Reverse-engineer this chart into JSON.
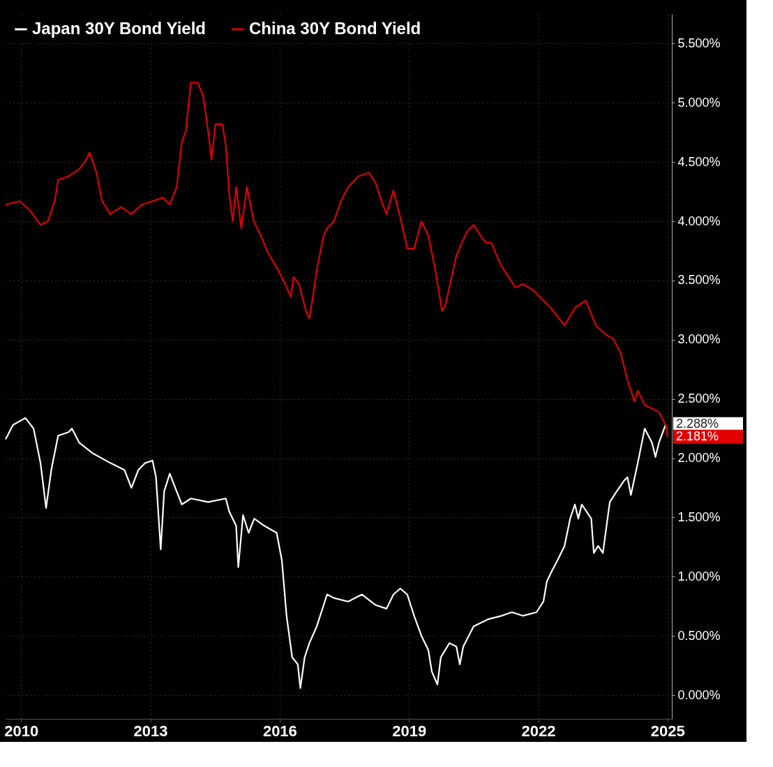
{
  "chart_data": {
    "type": "line",
    "xlim": [
      2009.64,
      2025.1
    ],
    "xticks": [
      2010,
      2013,
      2016,
      2019,
      2022,
      2025
    ],
    "ylim": [
      -0.2,
      5.75
    ],
    "yticks": [
      {
        "value": 0,
        "label": "0.000%"
      },
      {
        "value": 0.5,
        "label": "0.500%"
      },
      {
        "value": 1,
        "label": "1.000%"
      },
      {
        "value": 1.5,
        "label": "1.500%"
      },
      {
        "value": 2,
        "label": "2.000%"
      },
      {
        "value": 2.5,
        "label": "2.500%"
      },
      {
        "value": 3,
        "label": "3.000%"
      },
      {
        "value": 3.5,
        "label": "3.500%"
      },
      {
        "value": 4,
        "label": "4.000%"
      },
      {
        "value": 4.5,
        "label": "4.500%"
      },
      {
        "value": 5,
        "label": "5.000%"
      },
      {
        "value": 5.5,
        "label": "5.500%"
      }
    ],
    "grid": true,
    "legend": "top left",
    "line_style": "solid",
    "marker": "none",
    "series": [
      {
        "name": "Japan 30Y Bond Yield",
        "color": "#ffffff",
        "x": [
          2009.64,
          2009.81,
          2010.1,
          2010.29,
          2010.45,
          2010.58,
          2010.7,
          2010.86,
          2011.1,
          2011.18,
          2011.35,
          2011.67,
          2012.07,
          2012.4,
          2012.56,
          2012.72,
          2012.88,
          2013.05,
          2013.13,
          2013.24,
          2013.32,
          2013.45,
          2013.61,
          2013.73,
          2013.94,
          2014.34,
          2014.75,
          2014.83,
          2014.99,
          2015.04,
          2015.15,
          2015.28,
          2015.41,
          2015.64,
          2015.93,
          2016.05,
          2016.16,
          2016.29,
          2016.42,
          2016.48,
          2016.58,
          2016.69,
          2016.86,
          2017.1,
          2017.26,
          2017.59,
          2017.91,
          2018.23,
          2018.48,
          2018.64,
          2018.8,
          2018.96,
          2019.12,
          2019.29,
          2019.45,
          2019.53,
          2019.66,
          2019.74,
          2019.94,
          2020.1,
          2020.18,
          2020.26,
          2020.5,
          2020.83,
          2021.15,
          2021.39,
          2021.64,
          2021.96,
          2022.12,
          2022.2,
          2022.32,
          2022.45,
          2022.61,
          2022.74,
          2022.85,
          2022.93,
          2023.01,
          2023.23,
          2023.29,
          2023.39,
          2023.5,
          2023.66,
          2023.82,
          2023.99,
          2024.07,
          2024.15,
          2024.31,
          2024.47,
          2024.64,
          2024.72,
          2024.8,
          2024.96
        ],
        "values": [
          2.16,
          2.28,
          2.34,
          2.25,
          1.96,
          1.58,
          1.9,
          2.19,
          2.22,
          2.25,
          2.13,
          2.04,
          1.96,
          1.9,
          1.75,
          1.9,
          1.96,
          1.98,
          1.84,
          1.23,
          1.72,
          1.87,
          1.72,
          1.61,
          1.66,
          1.63,
          1.66,
          1.55,
          1.43,
          1.08,
          1.52,
          1.37,
          1.49,
          1.43,
          1.37,
          1.14,
          0.67,
          0.32,
          0.26,
          0.06,
          0.32,
          0.44,
          0.58,
          0.85,
          0.82,
          0.79,
          0.85,
          0.76,
          0.73,
          0.85,
          0.9,
          0.85,
          0.67,
          0.5,
          0.38,
          0.2,
          0.09,
          0.32,
          0.44,
          0.41,
          0.26,
          0.41,
          0.58,
          0.64,
          0.67,
          0.7,
          0.67,
          0.7,
          0.79,
          0.96,
          1.05,
          1.14,
          1.26,
          1.49,
          1.61,
          1.49,
          1.61,
          1.49,
          1.2,
          1.26,
          1.2,
          1.63,
          1.72,
          1.81,
          1.84,
          1.69,
          1.96,
          2.25,
          2.13,
          2.01,
          2.13,
          2.288
        ],
        "value_labels": [
          null,
          null,
          null,
          null,
          null,
          null,
          null,
          null,
          null,
          null,
          null,
          null,
          null,
          null,
          null,
          null,
          null,
          null,
          null,
          null,
          null,
          null,
          null,
          null,
          null,
          null,
          null,
          null,
          null,
          null,
          null,
          null,
          null,
          null,
          null,
          null,
          null,
          null,
          null,
          null,
          null,
          null,
          null,
          null,
          null,
          null,
          null,
          null,
          null,
          null,
          null,
          null,
          null,
          null,
          null,
          null,
          null,
          null,
          null,
          null,
          null,
          null,
          null,
          null,
          null,
          null,
          null,
          null,
          null,
          null,
          null,
          null,
          null,
          null,
          null,
          null,
          null,
          null,
          null,
          null,
          null,
          null,
          null,
          null,
          null,
          null,
          null,
          null,
          null,
          null,
          null,
          "2.288%"
        ]
      },
      {
        "name": "China 30Y Bond Yield",
        "color": "#e00000",
        "x": [
          2009.64,
          2009.97,
          2010.21,
          2010.45,
          2010.62,
          2010.78,
          2010.86,
          2011.1,
          2011.35,
          2011.51,
          2011.59,
          2011.75,
          2011.88,
          2012.07,
          2012.32,
          2012.56,
          2012.8,
          2013.05,
          2013.29,
          2013.45,
          2013.61,
          2013.73,
          2013.82,
          2013.94,
          2014.1,
          2014.23,
          2014.34,
          2014.42,
          2014.51,
          2014.67,
          2014.75,
          2014.83,
          2014.91,
          2014.99,
          2015.11,
          2015.24,
          2015.4,
          2015.56,
          2015.72,
          2015.96,
          2016.13,
          2016.26,
          2016.32,
          2016.45,
          2016.61,
          2016.69,
          2016.77,
          2016.86,
          2017.02,
          2017.1,
          2017.26,
          2017.42,
          2017.59,
          2017.83,
          2018.07,
          2018.23,
          2018.36,
          2018.48,
          2018.64,
          2018.8,
          2018.96,
          2019.12,
          2019.29,
          2019.45,
          2019.61,
          2019.77,
          2019.85,
          2020.1,
          2020.34,
          2020.5,
          2020.66,
          2020.78,
          2020.91,
          2021.07,
          2021.15,
          2021.47,
          2021.64,
          2021.88,
          2022.04,
          2022.29,
          2022.61,
          2022.85,
          2023.1,
          2023.34,
          2023.58,
          2023.74,
          2023.91,
          2024.07,
          2024.23,
          2024.31,
          2024.47,
          2024.64,
          2024.8,
          2024.96,
          2025.0
        ],
        "values": [
          4.14,
          4.17,
          4.09,
          3.97,
          4.0,
          4.17,
          4.35,
          4.38,
          4.44,
          4.52,
          4.58,
          4.41,
          4.17,
          4.06,
          4.12,
          4.06,
          4.14,
          4.17,
          4.2,
          4.14,
          4.29,
          4.67,
          4.76,
          5.17,
          5.17,
          5.05,
          4.76,
          4.52,
          4.82,
          4.82,
          4.64,
          4.23,
          4.0,
          4.29,
          3.94,
          4.29,
          4.0,
          3.88,
          3.74,
          3.59,
          3.47,
          3.36,
          3.53,
          3.47,
          3.24,
          3.18,
          3.36,
          3.59,
          3.88,
          3.94,
          4.0,
          4.17,
          4.29,
          4.38,
          4.41,
          4.32,
          4.17,
          4.06,
          4.26,
          4.03,
          3.77,
          3.77,
          4.0,
          3.88,
          3.59,
          3.24,
          3.3,
          3.71,
          3.91,
          3.97,
          3.88,
          3.82,
          3.82,
          3.68,
          3.62,
          3.44,
          3.47,
          3.42,
          3.36,
          3.27,
          3.12,
          3.27,
          3.33,
          3.12,
          3.04,
          3.01,
          2.89,
          2.66,
          2.48,
          2.57,
          2.45,
          2.42,
          2.39,
          2.28,
          2.181
        ],
        "value_labels": [
          null,
          null,
          null,
          null,
          null,
          null,
          null,
          null,
          null,
          null,
          null,
          null,
          null,
          null,
          null,
          null,
          null,
          null,
          null,
          null,
          null,
          null,
          null,
          null,
          null,
          null,
          null,
          null,
          null,
          null,
          null,
          null,
          null,
          null,
          null,
          null,
          null,
          null,
          null,
          null,
          null,
          null,
          null,
          null,
          null,
          null,
          null,
          null,
          null,
          null,
          null,
          null,
          null,
          null,
          null,
          null,
          null,
          null,
          null,
          null,
          null,
          null,
          null,
          null,
          null,
          null,
          null,
          null,
          null,
          null,
          null,
          null,
          null,
          null,
          null,
          null,
          null,
          null,
          null,
          null,
          null,
          null,
          null,
          null,
          null,
          null,
          null,
          null,
          null,
          null,
          null,
          null,
          null,
          null,
          "2.181%"
        ]
      }
    ]
  }
}
